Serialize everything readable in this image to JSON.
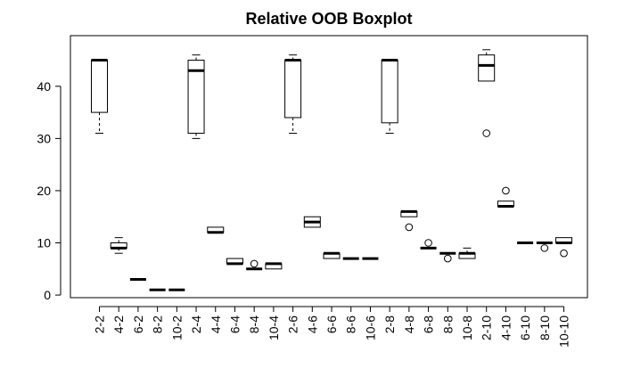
{
  "chart_data": {
    "type": "boxplot",
    "title": "Relative OOB Boxplot",
    "xlabel": "",
    "ylabel": "",
    "ylim": [
      -0.5,
      49.7
    ],
    "yticks": [
      0,
      10,
      20,
      30,
      40
    ],
    "grid": false,
    "legend": "none",
    "colors": {
      "box": "#000000",
      "median": "#000000",
      "background": "#ffffff"
    },
    "categories": [
      "2-2",
      "4-2",
      "6-2",
      "8-2",
      "10-2",
      "2-4",
      "4-4",
      "6-4",
      "8-4",
      "10-4",
      "2-6",
      "4-6",
      "6-6",
      "8-6",
      "10-6",
      "2-8",
      "4-8",
      "6-8",
      "8-8",
      "10-8",
      "2-10",
      "4-10",
      "6-10",
      "8-10",
      "10-10"
    ],
    "boxes": [
      {
        "min": 31,
        "q1": 35,
        "median": 45,
        "q3": 45,
        "max": 45,
        "outliers": []
      },
      {
        "min": 8,
        "q1": 9,
        "median": 9,
        "q3": 10,
        "max": 11,
        "outliers": []
      },
      {
        "min": 3,
        "q1": 3,
        "median": 3,
        "q3": 3,
        "max": 3,
        "outliers": []
      },
      {
        "min": 1,
        "q1": 1,
        "median": 1,
        "q3": 1,
        "max": 1,
        "outliers": []
      },
      {
        "min": 1,
        "q1": 1,
        "median": 1,
        "q3": 1,
        "max": 1,
        "outliers": []
      },
      {
        "min": 30,
        "q1": 31,
        "median": 43,
        "q3": 45,
        "max": 46,
        "outliers": []
      },
      {
        "min": 12,
        "q1": 12,
        "median": 12,
        "q3": 13,
        "max": 13,
        "outliers": []
      },
      {
        "min": 6,
        "q1": 6,
        "median": 6,
        "q3": 7,
        "max": 7,
        "outliers": []
      },
      {
        "min": 5,
        "q1": 5,
        "median": 5,
        "q3": 5,
        "max": 5,
        "outliers": [
          6
        ]
      },
      {
        "min": 5,
        "q1": 5,
        "median": 6,
        "q3": 6,
        "max": 6,
        "outliers": []
      },
      {
        "min": 31,
        "q1": 34,
        "median": 45,
        "q3": 45,
        "max": 46,
        "outliers": []
      },
      {
        "min": 13,
        "q1": 13,
        "median": 14,
        "q3": 15,
        "max": 15,
        "outliers": []
      },
      {
        "min": 7,
        "q1": 7,
        "median": 8,
        "q3": 8,
        "max": 8,
        "outliers": []
      },
      {
        "min": 7,
        "q1": 7,
        "median": 7,
        "q3": 7,
        "max": 7,
        "outliers": []
      },
      {
        "min": 7,
        "q1": 7,
        "median": 7,
        "q3": 7,
        "max": 7,
        "outliers": []
      },
      {
        "min": 31,
        "q1": 33,
        "median": 45,
        "q3": 45,
        "max": 45,
        "outliers": []
      },
      {
        "min": 15,
        "q1": 15,
        "median": 16,
        "q3": 16,
        "max": 16,
        "outliers": [
          13
        ]
      },
      {
        "min": 9,
        "q1": 9,
        "median": 9,
        "q3": 9,
        "max": 9,
        "outliers": [
          10
        ]
      },
      {
        "min": 8,
        "q1": 8,
        "median": 8,
        "q3": 8,
        "max": 8,
        "outliers": [
          7
        ]
      },
      {
        "min": 7,
        "q1": 7,
        "median": 8,
        "q3": 8,
        "max": 9,
        "outliers": []
      },
      {
        "min": 41,
        "q1": 41,
        "median": 44,
        "q3": 46,
        "max": 47,
        "outliers": [
          31
        ]
      },
      {
        "min": 17,
        "q1": 17,
        "median": 17,
        "q3": 18,
        "max": 18,
        "outliers": [
          20
        ]
      },
      {
        "min": 10,
        "q1": 10,
        "median": 10,
        "q3": 10,
        "max": 10,
        "outliers": []
      },
      {
        "min": 10,
        "q1": 10,
        "median": 10,
        "q3": 10,
        "max": 10,
        "outliers": [
          9
        ]
      },
      {
        "min": 10,
        "q1": 10,
        "median": 10,
        "q3": 11,
        "max": 11,
        "outliers": [
          8
        ]
      }
    ]
  }
}
